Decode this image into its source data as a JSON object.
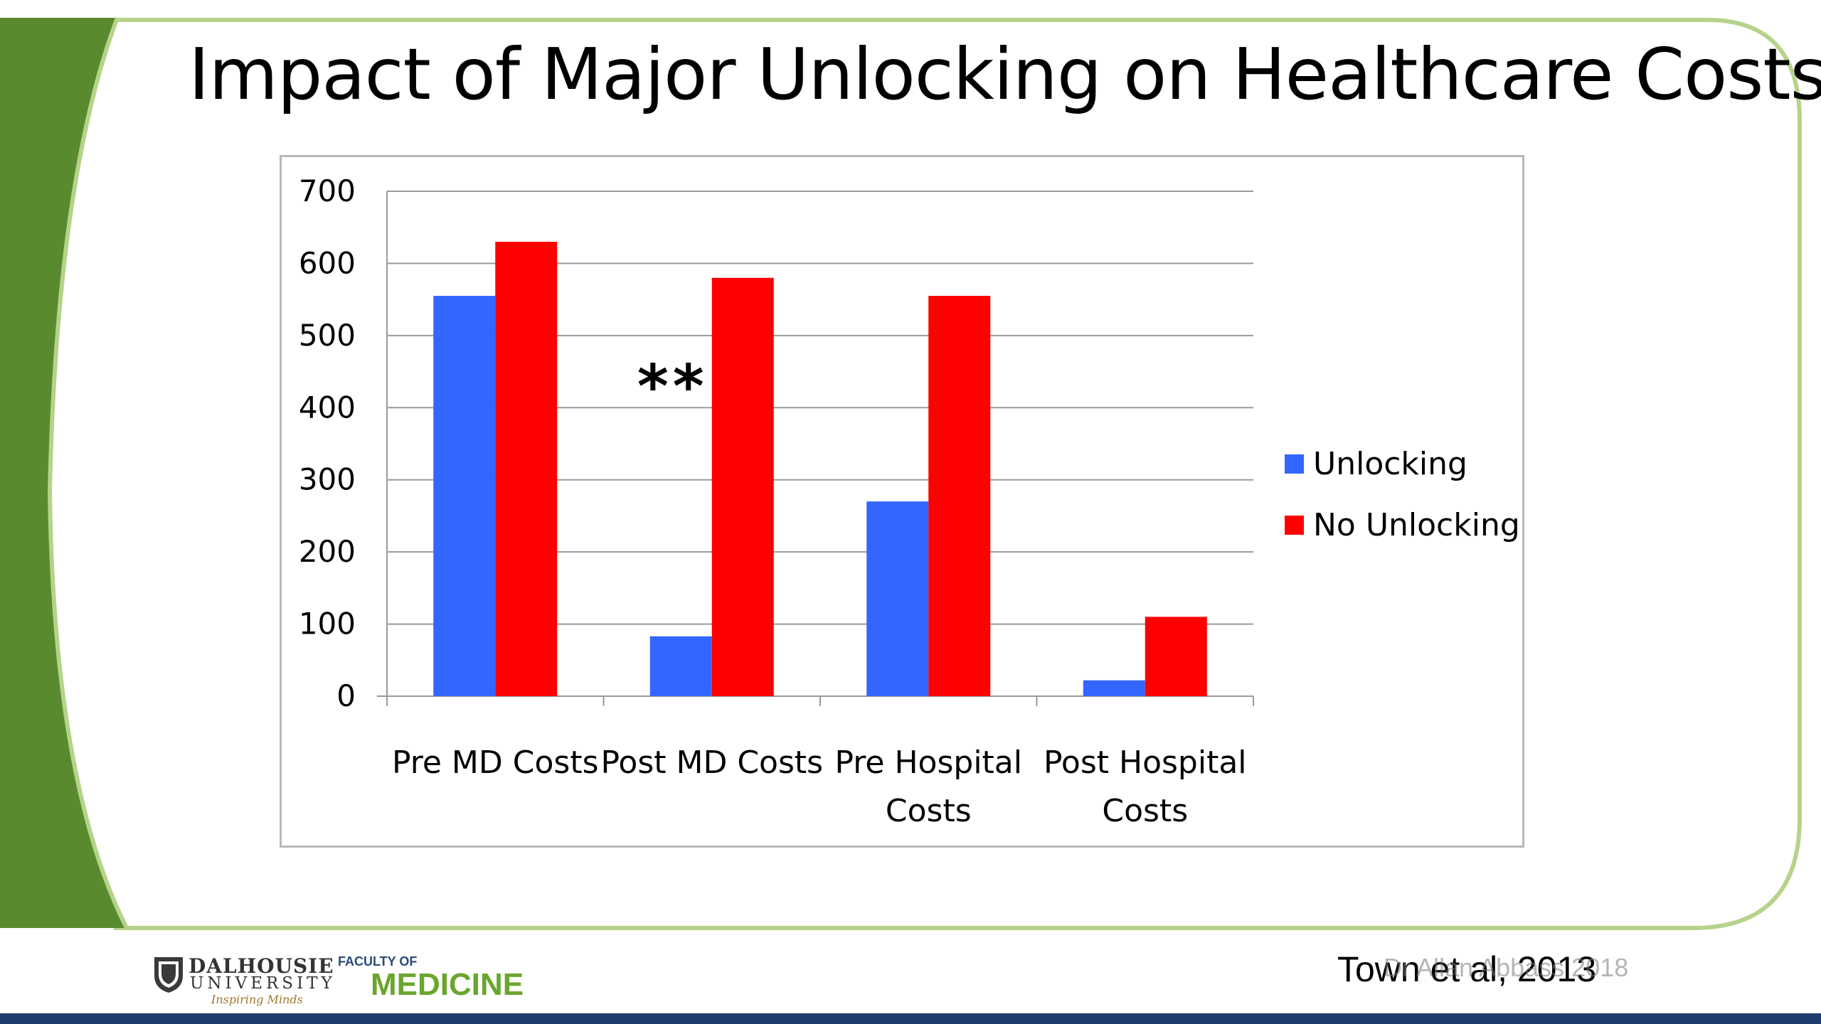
{
  "slide": {
    "title": "Impact of Major Unlocking on Healthcare Costs",
    "citation": "Town et al, 2013",
    "watermark": "Dr Allan Abbass 2018",
    "significance_marker": "**",
    "colors": {
      "frame_green": "#5a8a2e",
      "frame_light_green": "#b5d38a",
      "bottom_bar": "#1e3d6e"
    }
  },
  "logos": {
    "university_name": "DALHOUSIE",
    "university_word": "UNIVERSITY",
    "university_tagline": "Inspiring Minds",
    "faculty_label": "FACULTY OF",
    "faculty_name": "MEDICINE"
  },
  "chart_data": {
    "type": "bar",
    "title": "",
    "xlabel": "",
    "ylabel": "",
    "categories": [
      "Pre MD Costs",
      "Post MD Costs",
      "Pre Hospital Costs",
      "Post Hospital Costs"
    ],
    "category_lines": [
      [
        "Pre MD Costs"
      ],
      [
        "Post MD Costs"
      ],
      [
        "Pre Hospital",
        "Costs"
      ],
      [
        "Post Hospital",
        "Costs"
      ]
    ],
    "series": [
      {
        "name": "Unlocking",
        "color": "#3366ff",
        "values": [
          555,
          83,
          270,
          22
        ]
      },
      {
        "name": "No Unlocking",
        "color": "#ff0000",
        "values": [
          630,
          580,
          555,
          110
        ]
      }
    ],
    "ylim": [
      0,
      700
    ],
    "yticks": [
      0,
      100,
      200,
      300,
      400,
      500,
      600,
      700
    ],
    "grid": true,
    "legend_position": "right",
    "annotation": {
      "text": "**",
      "category": "Post MD Costs"
    }
  }
}
